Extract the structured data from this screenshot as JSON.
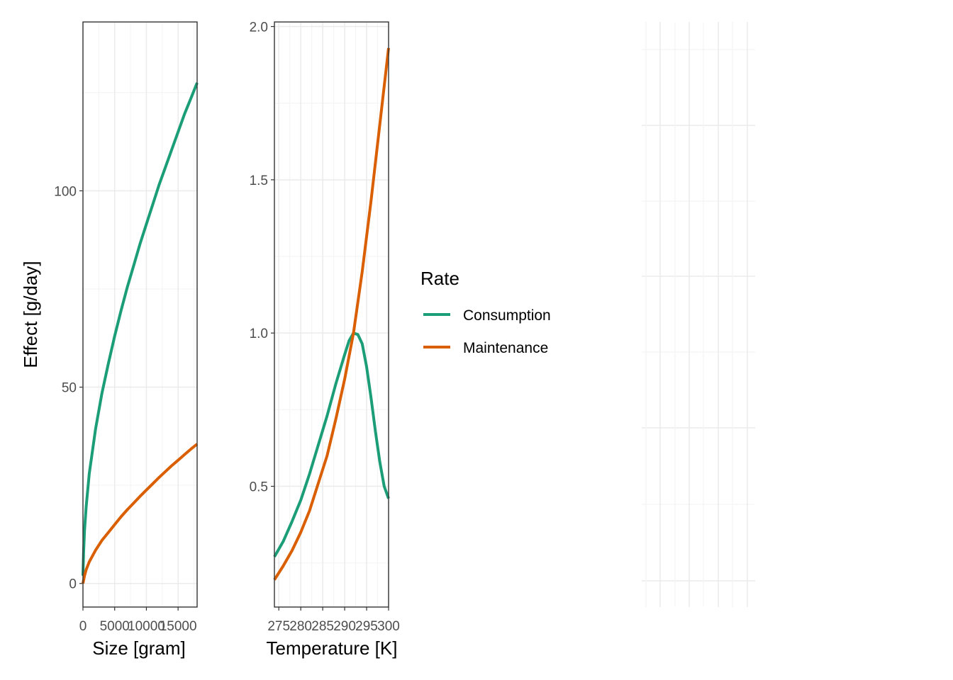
{
  "colors": {
    "consumption": "#1B9E77",
    "maintenance": "#D95F02",
    "grid_major": "#EBEBEB",
    "grid_minor": "#F5F5F5",
    "panel_border": "#333333"
  },
  "legend": {
    "title": "Rate",
    "items": [
      {
        "label": "Consumption",
        "color": "#1B9E77"
      },
      {
        "label": "Maintenance",
        "color": "#D95F02"
      }
    ]
  },
  "chart_data": [
    {
      "type": "line",
      "xlabel": "Size [gram]",
      "ylabel": "Effect [g/day]",
      "xlim": [
        0,
        18000
      ],
      "ylim": [
        -6,
        143
      ],
      "xticks": [
        0,
        5000,
        10000,
        15000
      ],
      "xtick_labels": [
        "0",
        "5000",
        "10000",
        "15000"
      ],
      "yticks": [
        0,
        50,
        100
      ],
      "ytick_labels": [
        "0",
        "50",
        "100"
      ],
      "series": [
        {
          "name": "Consumption",
          "x": [
            0,
            100,
            250,
            500,
            1000,
            2000,
            3000,
            4000,
            5000,
            6000,
            7000,
            8000,
            9000,
            10000,
            11000,
            12000,
            13000,
            14000,
            15000,
            16000,
            17000,
            18000
          ],
          "y": [
            2,
            8,
            13.5,
            19.5,
            28,
            39.5,
            48.5,
            56,
            63,
            69.5,
            75.5,
            81,
            86.5,
            91.5,
            96.5,
            101.5,
            106,
            110.5,
            115,
            119.5,
            123.5,
            127.5
          ]
        },
        {
          "name": "Maintenance",
          "x": [
            0,
            250,
            500,
            1000,
            2000,
            3000,
            4000,
            5000,
            6000,
            7000,
            8000,
            9000,
            10000,
            11000,
            12000,
            13000,
            14000,
            15000,
            16000,
            17000,
            18000
          ],
          "y": [
            0,
            2,
            3.5,
            5.5,
            8.5,
            11,
            13,
            15,
            17,
            18.8,
            20.5,
            22.2,
            23.8,
            25.4,
            27,
            28.5,
            30,
            31.4,
            32.8,
            34.2,
            35.5
          ]
        }
      ]
    },
    {
      "type": "line",
      "xlabel": "Temperature [K]",
      "ylabel": "",
      "xlim": [
        274,
        300
      ],
      "ylim": [
        0.106,
        2.015
      ],
      "xticks": [
        275,
        280,
        285,
        290,
        295,
        300
      ],
      "xtick_labels": [
        "275",
        "280",
        "285",
        "290",
        "295",
        "300"
      ],
      "yticks": [
        0.5,
        1.0,
        1.5,
        2.0
      ],
      "ytick_labels": [
        "0.5",
        "1.0",
        "1.5",
        "2.0"
      ],
      "series": [
        {
          "name": "Consumption",
          "x": [
            274,
            276,
            278,
            280,
            282,
            284,
            286,
            288,
            290,
            291,
            292,
            293,
            294,
            295,
            296,
            297,
            298,
            299,
            300
          ],
          "y": [
            0.27,
            0.32,
            0.385,
            0.455,
            0.54,
            0.635,
            0.73,
            0.835,
            0.93,
            0.975,
            1.0,
            0.995,
            0.965,
            0.89,
            0.79,
            0.68,
            0.58,
            0.5,
            0.46
          ]
        },
        {
          "name": "Maintenance",
          "x": [
            274,
            276,
            278,
            280,
            282,
            284,
            286,
            288,
            290,
            292,
            294,
            296,
            298,
            300
          ],
          "y": [
            0.195,
            0.24,
            0.29,
            0.35,
            0.42,
            0.51,
            0.6,
            0.72,
            0.85,
            1.0,
            1.2,
            1.43,
            1.68,
            1.93
          ]
        }
      ]
    }
  ]
}
